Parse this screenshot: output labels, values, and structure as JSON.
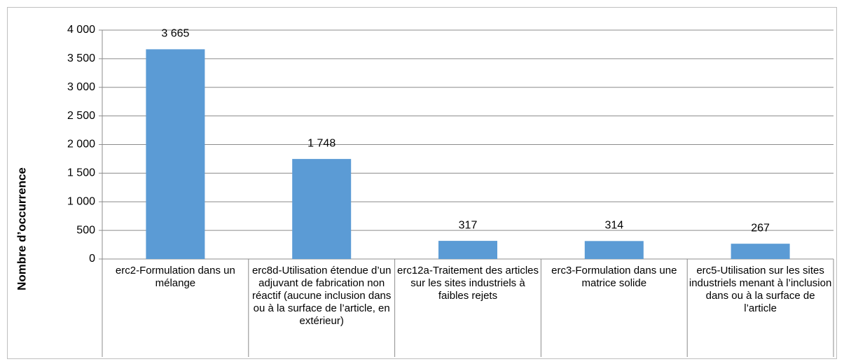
{
  "chart_data": {
    "type": "bar",
    "y_label": "Nombre d’occurrence",
    "categories": [
      "erc2-Formulation dans un mélange",
      "erc8d-Utilisation étendue d’un adjuvant de fabrication non réactif (aucune inclusion dans ou à la surface de l’article, en extérieur)",
      "erc12a-Traitement des articles sur les sites industriels à faibles rejets",
      "erc3-Formulation dans une matrice solide",
      "erc5-Utilisation sur les sites industriels menant à l’inclusion dans ou à la surface de l’article"
    ],
    "values": [
      3665,
      1748,
      317,
      314,
      267
    ],
    "value_labels": [
      "3 665",
      "1 748",
      "317",
      "314",
      "267"
    ],
    "color": "#5b9bd5",
    "ylim": [
      0,
      4000
    ],
    "yticks": [
      0,
      500,
      {
        "value": 1000,
        "label": "1 000"
      },
      {
        "value": 1500,
        "label": "1 500"
      },
      {
        "value": 2000,
        "label": "2 000"
      },
      {
        "value": 2500,
        "label": "2 500"
      },
      {
        "value": 3000,
        "label": "3 000"
      },
      {
        "value": 3500,
        "label": "3 500"
      },
      {
        "value": 4000,
        "label": "4 000"
      }
    ],
    "grid": true
  }
}
